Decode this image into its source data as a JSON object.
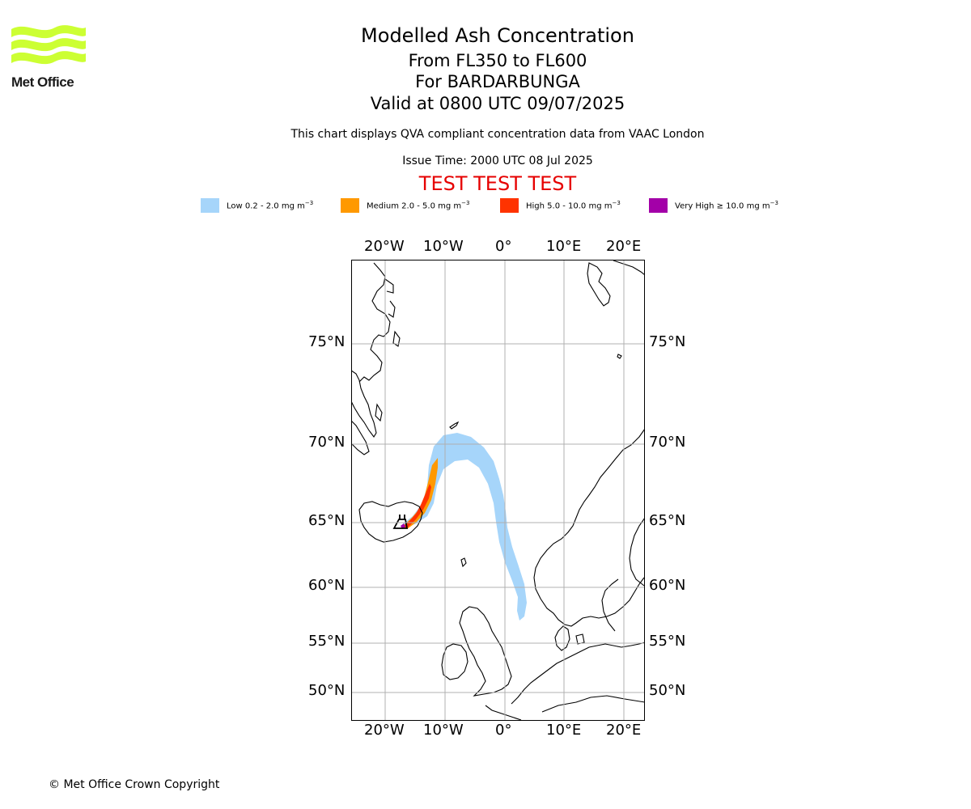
{
  "header": {
    "logo_text": "Met Office",
    "title": "Modelled Ash Concentration",
    "level_range": "From FL350 to FL600",
    "volcano": "For BARDARBUNGA",
    "valid_time": "Valid at 0800 UTC 09/07/2025",
    "info": "This chart displays QVA compliant concentration data from VAAC London",
    "issue_time": "Issue Time: 2000 UTC 08 Jul 2025",
    "test_banner": "TEST TEST TEST",
    "test_color": "#e60000"
  },
  "legend": [
    {
      "label": "Low 0.2 - 2.0 mg m",
      "unit_exp": "−3",
      "color": "#a6d5fa"
    },
    {
      "label": "Medium 2.0 - 5.0 mg m",
      "unit_exp": "−3",
      "color": "#ff9900"
    },
    {
      "label": "High 5.0 - 10.0 mg m",
      "unit_exp": "−3",
      "color": "#ff3300"
    },
    {
      "label": "Very High ≥ 10.0 mg m",
      "unit_exp": "−3",
      "color": "#a300a8"
    }
  ],
  "map": {
    "lon_labels": [
      "20°W",
      "10°W",
      "0°",
      "10°E",
      "20°E"
    ],
    "lat_labels": [
      "75°N",
      "70°N",
      "65°N",
      "60°N",
      "55°N",
      "50°N"
    ]
  },
  "footer": {
    "copyright": "© Met Office Crown Copyright"
  }
}
